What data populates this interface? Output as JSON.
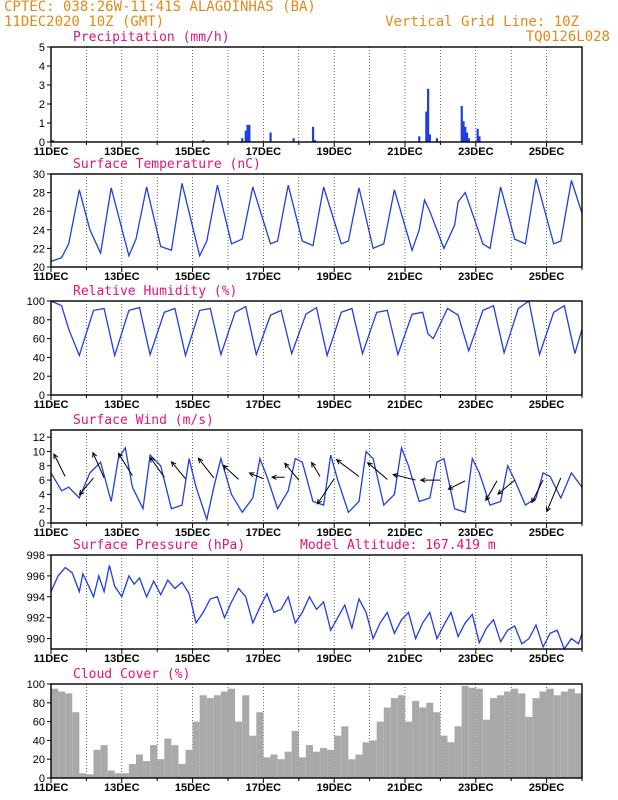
{
  "header": {
    "line1_left": "CPTEC:  038:26W-11:41S  ALAGOINHAS (BA)",
    "line2_left": "11DEC2020 10Z (GMT)",
    "line1_right": "Vertical Grid Line: 10Z",
    "line2_right": "TQ0126L028"
  },
  "x_tick_labels": [
    "11DEC",
    "13DEC",
    "15DEC",
    "17DEC",
    "19DEC",
    "21DEC",
    "23DEC",
    "25DEC"
  ],
  "colors": {
    "header": "#e08a1a",
    "title": "#e0147a",
    "line": "#1f3fe0",
    "bar": "#1f3fe0",
    "cloud": "#a9a9a9",
    "arrow": "#000000"
  },
  "chart_data": [
    {
      "type": "bar",
      "title": "Precipitation (mm/h)",
      "ylim": [
        0,
        5
      ],
      "yticks": [
        0,
        1,
        2,
        3,
        4,
        5
      ],
      "xlim_days": [
        11,
        26
      ],
      "x": [
        11.05,
        15.3,
        16.4,
        16.5,
        16.55,
        16.6,
        17.2,
        17.85,
        18.4,
        18.45,
        21.4,
        21.6,
        21.65,
        21.7,
        21.9,
        22.6,
        22.65,
        22.7,
        22.75,
        22.8,
        23.05,
        23.1
      ],
      "values": [
        0.1,
        0.1,
        0.2,
        0.6,
        0.9,
        0.9,
        0.5,
        0.2,
        0.8,
        0.1,
        0.3,
        1.6,
        2.8,
        0.4,
        0.2,
        1.9,
        1.1,
        0.8,
        0.5,
        0.2,
        0.7,
        0.3
      ]
    },
    {
      "type": "line",
      "title": "Surface Temperature (nC)",
      "ylim": [
        20,
        30
      ],
      "yticks": [
        20,
        22,
        24,
        26,
        28,
        30
      ],
      "xlim_days": [
        11,
        26
      ],
      "x": [
        11.0,
        11.3,
        11.5,
        11.8,
        12.1,
        12.4,
        12.7,
        13.2,
        13.4,
        13.7,
        14.1,
        14.4,
        14.7,
        15.2,
        15.4,
        15.7,
        16.1,
        16.4,
        16.7,
        17.2,
        17.4,
        17.7,
        18.1,
        18.4,
        18.7,
        19.2,
        19.4,
        19.7,
        20.1,
        20.4,
        20.7,
        21.2,
        21.4,
        21.55,
        21.7,
        22.1,
        22.4,
        22.5,
        22.7,
        23.2,
        23.4,
        23.7,
        24.1,
        24.4,
        24.7,
        25.2,
        25.4,
        25.7,
        26.0
      ],
      "values": [
        20.6,
        21.0,
        22.5,
        28.3,
        24.0,
        21.5,
        28.5,
        21.2,
        23.0,
        28.6,
        22.2,
        21.8,
        29.0,
        21.2,
        22.8,
        28.8,
        22.5,
        23.0,
        28.6,
        22.5,
        22.8,
        28.8,
        22.8,
        22.3,
        28.6,
        22.5,
        22.8,
        28.5,
        22.0,
        22.5,
        28.3,
        21.8,
        24.0,
        27.2,
        26.0,
        22.0,
        24.5,
        27.0,
        28.0,
        22.5,
        22.0,
        28.6,
        23.0,
        22.5,
        29.5,
        22.5,
        22.8,
        29.3,
        25.8
      ]
    },
    {
      "type": "line",
      "title": "Relative Humidity (%)",
      "ylim": [
        0,
        100
      ],
      "yticks": [
        0,
        20,
        40,
        60,
        80,
        100
      ],
      "xlim_days": [
        11,
        26
      ],
      "x": [
        11.0,
        11.3,
        11.5,
        11.8,
        12.2,
        12.5,
        12.8,
        13.2,
        13.5,
        13.8,
        14.2,
        14.5,
        14.8,
        15.2,
        15.5,
        15.8,
        16.2,
        16.5,
        16.8,
        17.2,
        17.5,
        17.8,
        18.2,
        18.5,
        18.8,
        19.2,
        19.5,
        19.8,
        20.2,
        20.5,
        20.8,
        21.2,
        21.5,
        21.65,
        21.8,
        22.2,
        22.5,
        22.8,
        23.2,
        23.5,
        23.8,
        24.2,
        24.5,
        24.8,
        25.2,
        25.5,
        25.8,
        26.0
      ],
      "values": [
        100,
        95,
        70,
        42,
        90,
        92,
        42,
        90,
        93,
        43,
        88,
        92,
        42,
        90,
        92,
        43,
        88,
        94,
        43,
        85,
        90,
        44,
        86,
        93,
        42,
        88,
        92,
        44,
        88,
        90,
        43,
        86,
        88,
        65,
        60,
        92,
        85,
        47,
        90,
        95,
        45,
        92,
        100,
        43,
        88,
        95,
        44,
        70
      ]
    },
    {
      "type": "line",
      "title": "Surface Wind (m/s)",
      "ylim": [
        0,
        13
      ],
      "yticks": [
        0,
        2,
        4,
        6,
        8,
        10,
        12
      ],
      "xlim_days": [
        11,
        26
      ],
      "x": [
        11.0,
        11.3,
        11.5,
        11.8,
        12.1,
        12.4,
        12.7,
        12.9,
        13.1,
        13.3,
        13.6,
        13.8,
        14.1,
        14.4,
        14.7,
        14.9,
        15.1,
        15.4,
        15.6,
        15.8,
        16.1,
        16.4,
        16.7,
        16.9,
        17.1,
        17.4,
        17.7,
        17.9,
        18.1,
        18.4,
        18.7,
        18.9,
        19.1,
        19.4,
        19.7,
        19.9,
        20.1,
        20.4,
        20.7,
        20.9,
        21.1,
        21.4,
        21.7,
        21.9,
        22.1,
        22.4,
        22.7,
        22.9,
        23.1,
        23.4,
        23.7,
        23.9,
        24.1,
        24.4,
        24.7,
        24.9,
        25.1,
        25.4,
        25.7,
        26.0
      ],
      "values": [
        7.0,
        4.5,
        5.0,
        3.5,
        7.0,
        8.5,
        3.0,
        9.0,
        10.5,
        5.0,
        2.0,
        9.5,
        8.0,
        2.0,
        2.5,
        9.0,
        5.0,
        0.5,
        5.0,
        9.0,
        4.0,
        1.5,
        3.5,
        9.0,
        6.5,
        2.0,
        4.5,
        9.0,
        8.5,
        3.0,
        2.5,
        9.5,
        6.0,
        1.5,
        3.0,
        10.0,
        9.0,
        2.5,
        4.0,
        10.5,
        8.0,
        3.0,
        3.5,
        8.5,
        9.0,
        2.0,
        1.5,
        9.0,
        7.0,
        2.5,
        3.0,
        8.0,
        6.0,
        2.5,
        3.5,
        7.0,
        6.5,
        3.5,
        7.0,
        5.0
      ],
      "arrows": [
        {
          "day": 11.4,
          "y": 6.5,
          "dx": -0.4,
          "dy": 0.8
        },
        {
          "day": 12.2,
          "y": 6.3,
          "dx": -0.5,
          "dy": -0.6
        },
        {
          "day": 12.5,
          "y": 6.3,
          "dx": -0.4,
          "dy": 0.9
        },
        {
          "day": 13.3,
          "y": 6.6,
          "dx": -0.5,
          "dy": 0.8
        },
        {
          "day": 14.2,
          "y": 6.4,
          "dx": -0.5,
          "dy": 0.7
        },
        {
          "day": 14.8,
          "y": 6.2,
          "dx": -0.5,
          "dy": 0.6
        },
        {
          "day": 15.6,
          "y": 6.3,
          "dx": -0.55,
          "dy": 0.7
        },
        {
          "day": 16.3,
          "y": 6.1,
          "dx": -0.55,
          "dy": 0.5
        },
        {
          "day": 17.0,
          "y": 6.2,
          "dx": -0.5,
          "dy": 0.2
        },
        {
          "day": 17.6,
          "y": 6.4,
          "dx": -0.45,
          "dy": 0.0
        },
        {
          "day": 18.0,
          "y": 6.0,
          "dx": -0.5,
          "dy": 0.6
        },
        {
          "day": 18.6,
          "y": 6.5,
          "dx": -0.3,
          "dy": 0.5
        },
        {
          "day": 19.0,
          "y": 6.2,
          "dx": -0.6,
          "dy": -0.9
        },
        {
          "day": 19.7,
          "y": 6.5,
          "dx": -0.8,
          "dy": 0.6
        },
        {
          "day": 20.5,
          "y": 6.1,
          "dx": -0.7,
          "dy": 0.6
        },
        {
          "day": 21.3,
          "y": 6.0,
          "dx": -0.8,
          "dy": 0.2
        },
        {
          "day": 22.0,
          "y": 6.0,
          "dx": -0.7,
          "dy": 0.0
        },
        {
          "day": 22.7,
          "y": 5.9,
          "dx": -0.6,
          "dy": -0.3
        },
        {
          "day": 23.6,
          "y": 5.9,
          "dx": -0.4,
          "dy": -0.7
        },
        {
          "day": 24.1,
          "y": 6.0,
          "dx": -0.6,
          "dy": -0.5
        },
        {
          "day": 24.9,
          "y": 6.0,
          "dx": -0.4,
          "dy": -0.8
        },
        {
          "day": 25.4,
          "y": 6.3,
          "dx": -0.5,
          "dy": -1.2
        }
      ]
    },
    {
      "type": "line",
      "title": "Surface Pressure (hPa)",
      "annotation": "Model Altitude: 167.419  m",
      "ylim": [
        989,
        998
      ],
      "yticks": [
        990,
        992,
        994,
        996,
        998
      ],
      "xlim_days": [
        11,
        26
      ],
      "x": [
        11.0,
        11.2,
        11.4,
        11.6,
        11.8,
        11.9,
        12.0,
        12.2,
        12.35,
        12.5,
        12.65,
        12.8,
        13.0,
        13.2,
        13.35,
        13.5,
        13.7,
        13.9,
        14.1,
        14.3,
        14.5,
        14.7,
        14.9,
        15.1,
        15.3,
        15.5,
        15.7,
        15.9,
        16.1,
        16.3,
        16.5,
        16.7,
        16.9,
        17.1,
        17.3,
        17.5,
        17.7,
        17.9,
        18.1,
        18.3,
        18.5,
        18.7,
        18.9,
        19.1,
        19.3,
        19.5,
        19.7,
        19.9,
        20.1,
        20.3,
        20.5,
        20.7,
        20.9,
        21.1,
        21.3,
        21.5,
        21.7,
        21.9,
        22.1,
        22.3,
        22.5,
        22.7,
        22.9,
        23.1,
        23.3,
        23.5,
        23.7,
        23.9,
        24.1,
        24.3,
        24.5,
        24.7,
        24.9,
        25.1,
        25.3,
        25.5,
        25.7,
        25.9,
        26.0
      ],
      "values": [
        994.5,
        996.0,
        996.8,
        996.3,
        994.5,
        996.2,
        995.5,
        994.0,
        996.0,
        994.5,
        997.0,
        995.0,
        994.0,
        996.0,
        995.2,
        995.8,
        994.0,
        995.5,
        994.2,
        995.6,
        994.8,
        995.4,
        994.3,
        991.5,
        992.5,
        993.8,
        994.0,
        992.0,
        993.5,
        994.8,
        994.0,
        991.5,
        993.0,
        994.3,
        992.5,
        992.8,
        994.0,
        991.5,
        992.5,
        994.0,
        992.8,
        993.5,
        990.8,
        992.0,
        993.2,
        991.0,
        993.8,
        992.5,
        990.0,
        991.5,
        992.5,
        990.5,
        991.8,
        992.5,
        990.0,
        991.5,
        992.5,
        990.0,
        991.3,
        992.5,
        990.2,
        991.5,
        992.3,
        989.6,
        991.0,
        991.8,
        989.7,
        990.8,
        991.2,
        989.5,
        990.0,
        991.3,
        989.2,
        990.5,
        990.8,
        989.0,
        990.0,
        989.5,
        990.5
      ]
    },
    {
      "type": "bar",
      "title": "Cloud Cover (%)",
      "ylim": [
        0,
        100
      ],
      "yticks": [
        0,
        20,
        40,
        60,
        80,
        100
      ],
      "xlim_days": [
        11,
        26
      ],
      "x": [
        11.0,
        11.2,
        11.4,
        11.6,
        11.8,
        12.0,
        12.2,
        12.4,
        12.6,
        12.8,
        13.0,
        13.2,
        13.4,
        13.6,
        13.8,
        14.0,
        14.2,
        14.4,
        14.6,
        14.8,
        15.0,
        15.2,
        15.4,
        15.6,
        15.8,
        16.0,
        16.2,
        16.4,
        16.6,
        16.8,
        17.0,
        17.2,
        17.4,
        17.6,
        17.8,
        18.0,
        18.2,
        18.4,
        18.6,
        18.8,
        19.0,
        19.2,
        19.4,
        19.6,
        19.8,
        20.0,
        20.2,
        20.4,
        20.6,
        20.8,
        21.0,
        21.2,
        21.4,
        21.6,
        21.8,
        22.0,
        22.2,
        22.4,
        22.6,
        22.8,
        23.0,
        23.2,
        23.4,
        23.6,
        23.8,
        24.0,
        24.2,
        24.4,
        24.6,
        24.8,
        25.0,
        25.2,
        25.4,
        25.6,
        25.8
      ],
      "values": [
        95,
        92,
        90,
        70,
        5,
        4,
        30,
        35,
        8,
        5,
        5,
        15,
        25,
        18,
        35,
        20,
        42,
        35,
        15,
        30,
        60,
        88,
        85,
        88,
        92,
        95,
        60,
        88,
        45,
        70,
        22,
        25,
        20,
        28,
        50,
        22,
        35,
        28,
        32,
        30,
        45,
        55,
        20,
        25,
        38,
        40,
        60,
        75,
        85,
        88,
        60,
        82,
        75,
        80,
        70,
        45,
        38,
        55,
        98,
        96,
        95,
        62,
        85,
        88,
        92,
        95,
        90,
        65,
        85,
        92,
        95,
        88,
        92,
        95,
        90
      ]
    }
  ]
}
